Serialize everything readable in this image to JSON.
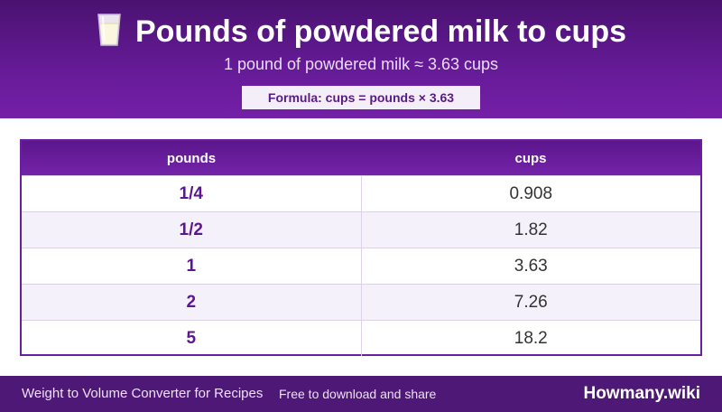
{
  "header": {
    "title_icon": "glass-of-milk-icon",
    "title": "Pounds of powdered milk to cups",
    "subtitle": "1 pound of powdered milk ≈ 3.63 cups",
    "formula": "Formula: cups = pounds × 3.63"
  },
  "table": {
    "columns": [
      "pounds",
      "cups"
    ],
    "rows": [
      {
        "pounds": "1/4",
        "cups": "0.908"
      },
      {
        "pounds": "1/2",
        "cups": "1.82"
      },
      {
        "pounds": "1",
        "cups": "3.63"
      },
      {
        "pounds": "2",
        "cups": "7.26"
      },
      {
        "pounds": "5",
        "cups": "18.2"
      }
    ]
  },
  "footer": {
    "left_text": "Weight to Volume Converter for Recipes",
    "note": "Free to download and share",
    "brand": "Howmany.wiki"
  },
  "colors": {
    "header_purple": "#661b98",
    "footer_purple": "#4e1876",
    "accent_text": "#5e1690"
  }
}
